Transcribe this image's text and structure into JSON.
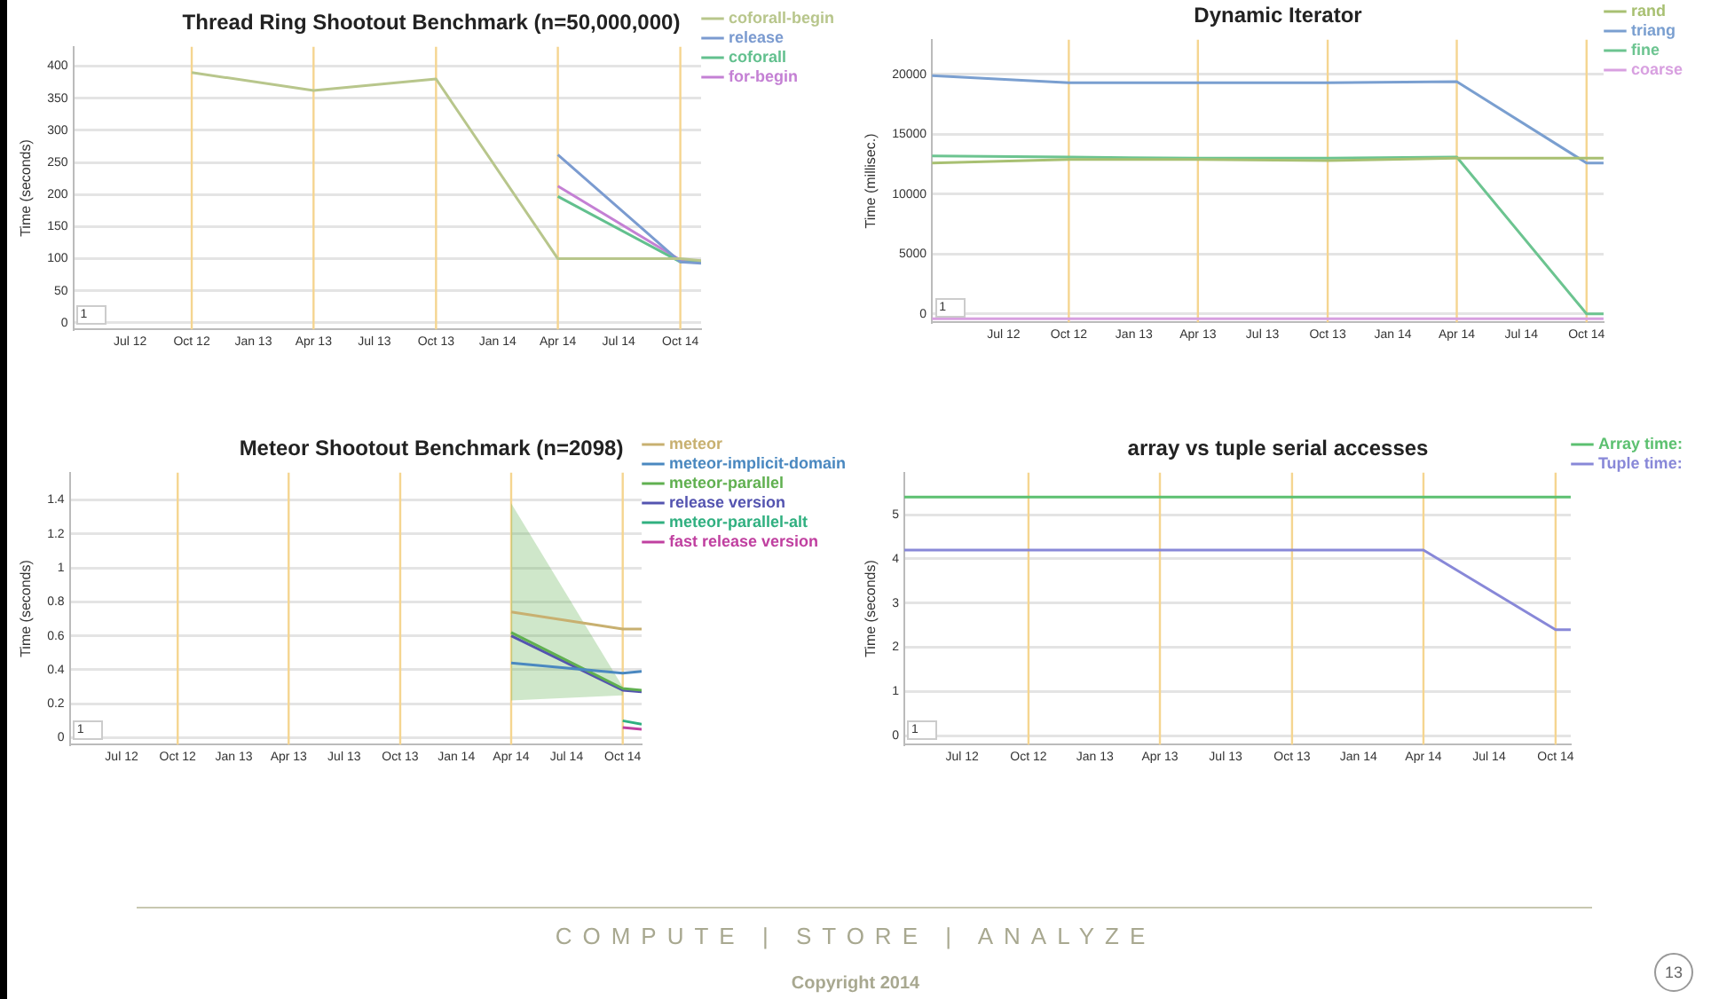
{
  "chart_data": [
    {
      "type": "line",
      "title": "Thread Ring Shootout Benchmark (n=50,000,000)",
      "ylabel": "Time (seconds)",
      "x": [
        "2012-10-01",
        "2013-04-01",
        "2013-10-01",
        "2014-04-01",
        "2014-10-01",
        "2014-11-01"
      ],
      "series": [
        {
          "name": "coforall-begin",
          "color": "#b8c68c",
          "values": [
            390,
            362,
            380,
            100,
            100,
            97
          ]
        },
        {
          "name": "release",
          "color": "#7b9bd0",
          "values": [
            null,
            null,
            null,
            262,
            95,
            93
          ]
        },
        {
          "name": "coforall",
          "color": "#62c08e",
          "values": [
            null,
            null,
            null,
            197,
            95,
            95
          ]
        },
        {
          "name": "for-begin",
          "color": "#c480d4",
          "values": [
            null,
            null,
            null,
            213,
            98,
            96
          ]
        }
      ],
      "xlim": [
        "2012-04-07",
        "2014-11-01"
      ],
      "xticks": [
        {
          "value": "2012-07-01",
          "label": "Jul 12"
        },
        {
          "value": "2012-10-01",
          "label": "Oct 12"
        },
        {
          "value": "2013-01-01",
          "label": "Jan 13"
        },
        {
          "value": "2013-04-01",
          "label": "Apr 13"
        },
        {
          "value": "2013-07-01",
          "label": "Jul 13"
        },
        {
          "value": "2013-10-01",
          "label": "Oct 13"
        },
        {
          "value": "2014-01-01",
          "label": "Jan 14"
        },
        {
          "value": "2014-04-01",
          "label": "Apr 14"
        },
        {
          "value": "2014-07-01",
          "label": "Jul 14"
        },
        {
          "value": "2014-10-01",
          "label": "Oct 14"
        }
      ],
      "ylim": [
        -10,
        430
      ],
      "yticks": [
        0,
        50,
        100,
        150,
        200,
        250,
        300,
        350,
        400
      ],
      "ref_lines": [
        {
          "axis": "x",
          "value": "2012-10-01",
          "color": "#f5d590"
        },
        {
          "axis": "x",
          "value": "2013-04-01",
          "color": "#f5d590"
        },
        {
          "axis": "x",
          "value": "2013-10-01",
          "color": "#f5d590"
        },
        {
          "axis": "x",
          "value": "2014-04-01",
          "color": "#f5d590"
        },
        {
          "axis": "x",
          "value": "2014-10-01",
          "color": "#f5d590"
        }
      ],
      "grid": "y",
      "legend": "top right",
      "annotations": [
        "1"
      ]
    },
    {
      "type": "line",
      "title": "Dynamic Iterator",
      "ylabel": "Time (millisec.)",
      "x": [
        "2012-03-22",
        "2012-10-01",
        "2013-04-01",
        "2013-10-01",
        "2014-04-01",
        "2014-10-01",
        "2014-10-25"
      ],
      "series": [
        {
          "name": "rand",
          "color": "#a8c072",
          "values": [
            12600,
            12900,
            12900,
            12800,
            13000,
            13000,
            13000
          ]
        },
        {
          "name": "triang",
          "color": "#7a9fd0",
          "values": [
            19900,
            19300,
            19300,
            19300,
            19400,
            12600,
            12600
          ]
        },
        {
          "name": "fine",
          "color": "#6cc490",
          "values": [
            13200,
            13100,
            13000,
            13000,
            13100,
            0,
            0
          ]
        },
        {
          "name": "coarse",
          "color": "#d8a0e0",
          "values": [
            -400,
            -400,
            -400,
            -400,
            -400,
            -400,
            -400
          ]
        }
      ],
      "xlim": [
        "2012-03-22",
        "2014-10-25"
      ],
      "xticks": [
        {
          "value": "2012-07-01",
          "label": "Jul 12"
        },
        {
          "value": "2012-10-01",
          "label": "Oct 12"
        },
        {
          "value": "2013-01-01",
          "label": "Jan 13"
        },
        {
          "value": "2013-04-01",
          "label": "Apr 13"
        },
        {
          "value": "2013-07-01",
          "label": "Jul 13"
        },
        {
          "value": "2013-10-01",
          "label": "Oct 13"
        },
        {
          "value": "2014-01-01",
          "label": "Jan 14"
        },
        {
          "value": "2014-04-01",
          "label": "Apr 14"
        },
        {
          "value": "2014-07-01",
          "label": "Jul 14"
        },
        {
          "value": "2014-10-01",
          "label": "Oct 14"
        }
      ],
      "ylim": [
        -700,
        22900
      ],
      "yticks": [
        0,
        5000,
        10000,
        15000,
        20000
      ],
      "ref_lines": [
        {
          "axis": "x",
          "value": "2012-10-01",
          "color": "#f5d590"
        },
        {
          "axis": "x",
          "value": "2013-04-01",
          "color": "#f5d590"
        },
        {
          "axis": "x",
          "value": "2013-10-01",
          "color": "#f5d590"
        },
        {
          "axis": "x",
          "value": "2014-04-01",
          "color": "#f5d590"
        },
        {
          "axis": "x",
          "value": "2014-10-01",
          "color": "#f5d590"
        }
      ],
      "grid": "y",
      "legend": "top right",
      "annotations": [
        "1"
      ]
    },
    {
      "type": "line",
      "title": "Meteor Shootout Benchmark (n=2098)",
      "ylabel": "Time (seconds)",
      "x": [
        "2014-04-01",
        "2014-10-01",
        "2014-11-01"
      ],
      "series": [
        {
          "name": "meteor",
          "color": "#c8b070",
          "values": [
            0.74,
            0.64,
            0.64
          ]
        },
        {
          "name": "meteor-implicit-domain",
          "color": "#4a88c0",
          "values": [
            0.44,
            0.38,
            0.39
          ]
        },
        {
          "name": "meteor-parallel",
          "color": "#60b050",
          "values": [
            0.62,
            0.29,
            0.28
          ],
          "lower": [
            0.22,
            0.25,
            null
          ],
          "upper": [
            1.38,
            0.3,
            null
          ]
        },
        {
          "name": "release version",
          "color": "#5454b0",
          "values": [
            0.6,
            0.28,
            0.27
          ]
        },
        {
          "name": "meteor-parallel-alt",
          "color": "#30b080",
          "values": [
            null,
            0.1,
            0.08
          ]
        },
        {
          "name": "fast release version",
          "color": "#c040a0",
          "values": [
            null,
            0.06,
            0.05
          ]
        }
      ],
      "xlim": [
        "2012-04-07",
        "2014-11-01"
      ],
      "xticks": [
        {
          "value": "2012-07-01",
          "label": "Jul 12"
        },
        {
          "value": "2012-10-01",
          "label": "Oct 12"
        },
        {
          "value": "2013-01-01",
          "label": "Jan 13"
        },
        {
          "value": "2013-04-01",
          "label": "Apr 13"
        },
        {
          "value": "2013-07-01",
          "label": "Jul 13"
        },
        {
          "value": "2013-10-01",
          "label": "Oct 13"
        },
        {
          "value": "2014-01-01",
          "label": "Jan 14"
        },
        {
          "value": "2014-04-01",
          "label": "Apr 14"
        },
        {
          "value": "2014-07-01",
          "label": "Jul 14"
        },
        {
          "value": "2014-10-01",
          "label": "Oct 14"
        }
      ],
      "ylim": [
        -0.04,
        1.56
      ],
      "yticks": [
        0,
        0.2,
        0.4,
        0.6,
        0.8,
        1,
        1.2,
        1.4
      ],
      "ref_lines": [
        {
          "axis": "x",
          "value": "2012-10-01",
          "color": "#f5d590"
        },
        {
          "axis": "x",
          "value": "2013-04-01",
          "color": "#f5d590"
        },
        {
          "axis": "x",
          "value": "2013-10-01",
          "color": "#f5d590"
        },
        {
          "axis": "x",
          "value": "2014-04-01",
          "color": "#f5d590"
        },
        {
          "axis": "x",
          "value": "2014-10-01",
          "color": "#f5d590"
        }
      ],
      "grid": "y",
      "legend": "top right",
      "annotations": [
        "1"
      ]
    },
    {
      "type": "line",
      "title": "array vs tuple serial accesses",
      "ylabel": "Time (seconds)",
      "x": [
        "2012-04-12",
        "2014-04-01",
        "2014-10-01",
        "2014-10-22"
      ],
      "series": [
        {
          "name": "Array time:",
          "color": "#5cc070",
          "values": [
            5.4,
            5.4,
            5.4,
            5.4
          ]
        },
        {
          "name": "Tuple time:",
          "color": "#8888d8",
          "values": [
            4.2,
            4.2,
            2.4,
            2.4
          ]
        }
      ],
      "xlim": [
        "2012-04-12",
        "2014-10-22"
      ],
      "xticks": [
        {
          "value": "2012-07-01",
          "label": "Jul 12"
        },
        {
          "value": "2012-10-01",
          "label": "Oct 12"
        },
        {
          "value": "2013-01-01",
          "label": "Jan 13"
        },
        {
          "value": "2013-04-01",
          "label": "Apr 13"
        },
        {
          "value": "2013-07-01",
          "label": "Jul 13"
        },
        {
          "value": "2013-10-01",
          "label": "Oct 13"
        },
        {
          "value": "2014-01-01",
          "label": "Jan 14"
        },
        {
          "value": "2014-04-01",
          "label": "Apr 14"
        },
        {
          "value": "2014-07-01",
          "label": "Jul 14"
        },
        {
          "value": "2014-10-01",
          "label": "Oct 14"
        }
      ],
      "ylim": [
        -0.2,
        5.95
      ],
      "yticks": [
        0,
        1,
        2,
        3,
        4,
        5
      ],
      "ref_lines": [
        {
          "axis": "x",
          "value": "2012-10-01",
          "color": "#f5d590"
        },
        {
          "axis": "x",
          "value": "2013-04-01",
          "color": "#f5d590"
        },
        {
          "axis": "x",
          "value": "2013-10-01",
          "color": "#f5d590"
        },
        {
          "axis": "x",
          "value": "2014-04-01",
          "color": "#f5d590"
        },
        {
          "axis": "x",
          "value": "2014-10-01",
          "color": "#f5d590"
        }
      ],
      "grid": "y",
      "legend": "top right",
      "annotations": [
        "1"
      ]
    },
    {
      "type": "other",
      "annotations": [
        "COMPUTE | STORE | ANALYZE",
        "Copyright 2014",
        "13"
      ]
    }
  ]
}
